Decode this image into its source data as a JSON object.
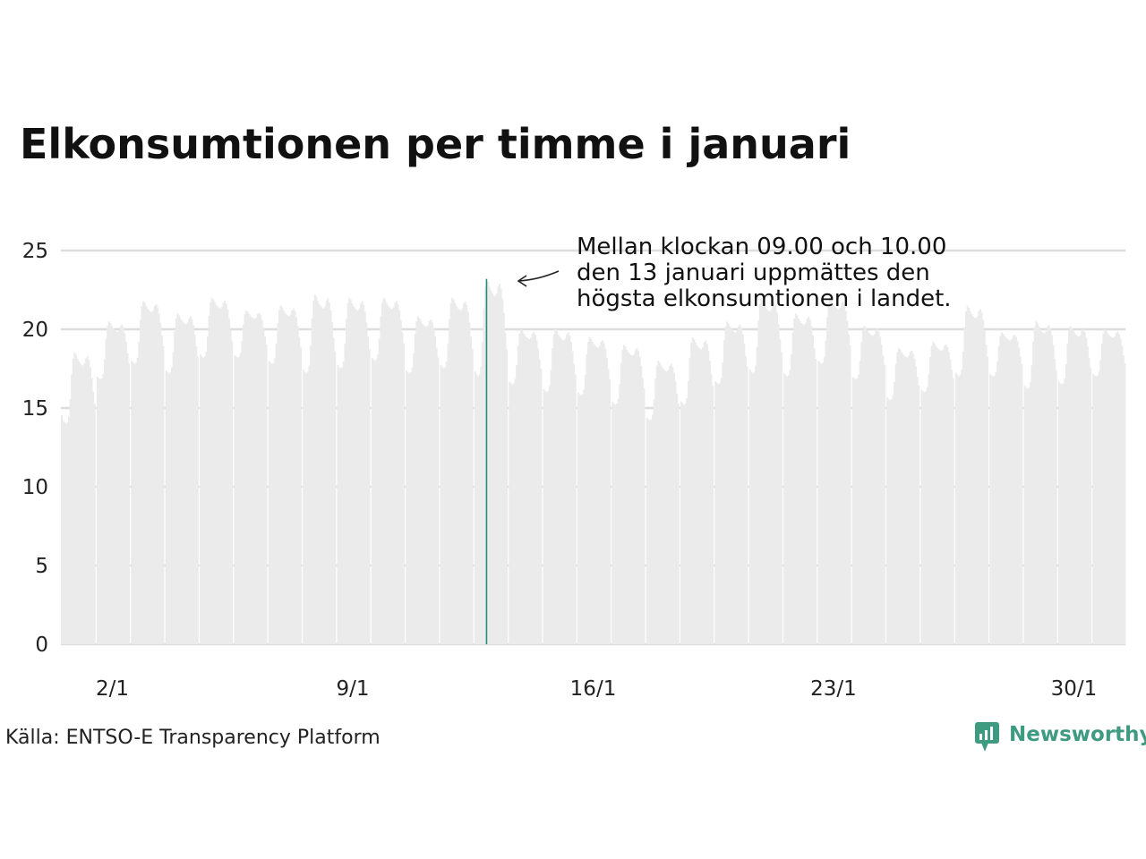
{
  "chart_data": {
    "type": "bar",
    "title": "Elkonsumtionen per timme i januari",
    "xlabel": "",
    "ylabel": "",
    "ylim": [
      0,
      25
    ],
    "yticks": [
      0,
      5,
      10,
      15,
      20,
      25
    ],
    "grid": true,
    "x_tick_labels": [
      {
        "day": 2,
        "label": "2/1"
      },
      {
        "day": 9,
        "label": "9/1"
      },
      {
        "day": 16,
        "label": "16/1"
      },
      {
        "day": 23,
        "label": "23/1"
      },
      {
        "day": 30,
        "label": "30/1"
      }
    ],
    "daily_profile": [
      {
        "day": 1,
        "min": 14.0,
        "max": 18.5
      },
      {
        "day": 2,
        "min": 16.8,
        "max": 20.5
      },
      {
        "day": 3,
        "min": 17.8,
        "max": 21.8
      },
      {
        "day": 4,
        "min": 17.2,
        "max": 21.0
      },
      {
        "day": 5,
        "min": 18.2,
        "max": 22.0
      },
      {
        "day": 6,
        "min": 18.2,
        "max": 21.2
      },
      {
        "day": 7,
        "min": 17.8,
        "max": 21.5
      },
      {
        "day": 8,
        "min": 17.2,
        "max": 22.2
      },
      {
        "day": 9,
        "min": 17.5,
        "max": 22.0
      },
      {
        "day": 10,
        "min": 18.0,
        "max": 22.0
      },
      {
        "day": 11,
        "min": 17.2,
        "max": 20.8
      },
      {
        "day": 12,
        "min": 17.5,
        "max": 22.0
      },
      {
        "day": 13,
        "min": 17.0,
        "max": 23.2
      },
      {
        "day": 14,
        "min": 16.5,
        "max": 20.0
      },
      {
        "day": 15,
        "min": 16.0,
        "max": 20.0
      },
      {
        "day": 16,
        "min": 15.8,
        "max": 19.5
      },
      {
        "day": 17,
        "min": 15.2,
        "max": 19.0
      },
      {
        "day": 18,
        "min": 14.2,
        "max": 18.0
      },
      {
        "day": 19,
        "min": 15.2,
        "max": 19.5
      },
      {
        "day": 20,
        "min": 16.5,
        "max": 20.5
      },
      {
        "day": 21,
        "min": 17.2,
        "max": 22.0
      },
      {
        "day": 22,
        "min": 17.0,
        "max": 21.0
      },
      {
        "day": 23,
        "min": 17.8,
        "max": 22.0
      },
      {
        "day": 24,
        "min": 16.8,
        "max": 20.2
      },
      {
        "day": 25,
        "min": 15.5,
        "max": 18.8
      },
      {
        "day": 26,
        "min": 16.0,
        "max": 19.2
      },
      {
        "day": 27,
        "min": 17.0,
        "max": 21.5
      },
      {
        "day": 28,
        "min": 17.0,
        "max": 19.8
      },
      {
        "day": 29,
        "min": 16.2,
        "max": 20.5
      },
      {
        "day": 30,
        "min": 16.5,
        "max": 20.2
      },
      {
        "day": 31,
        "min": 17.0,
        "max": 20.0
      }
    ],
    "highlight": {
      "day": 13,
      "hour": 9,
      "value": 23.2,
      "color": "#2a8a7a"
    },
    "bar_color": "#ebebeb",
    "grid_color": "#dddddd"
  },
  "annotation": {
    "lines": [
      "Mellan klockan 09.00 och 10.00",
      "den 13 januari uppmättes den",
      "högsta elkonsumtionen i landet."
    ]
  },
  "footer": {
    "source": "Källa: ENTSO-E Transparency Platform",
    "logo_text": "Newsworthy",
    "logo_icon": "newsworthy-logo-icon",
    "brand_color": "#3f9a82"
  }
}
